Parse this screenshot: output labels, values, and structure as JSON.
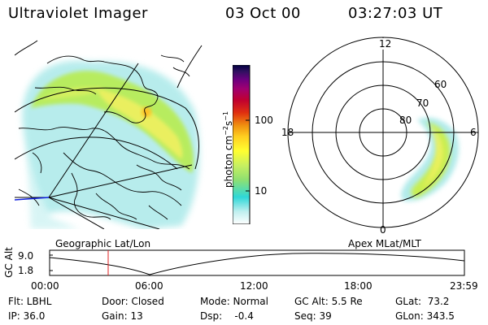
{
  "header": {
    "title": "Ultraviolet Imager",
    "date": "03 Oct 00",
    "time": "03:27:03 UT"
  },
  "left_panel": {
    "caption": "Geographic Lat/Lon"
  },
  "right_panel": {
    "caption": "Apex MLat/MLT",
    "mlt_labels": [
      "12",
      "18",
      "6",
      "0"
    ],
    "lat_labels": [
      "60",
      "70",
      "80"
    ]
  },
  "colorbar": {
    "label": "photon cm",
    "tick_labels": [
      "100",
      "10"
    ],
    "colors": [
      "#ffffff",
      "#bfefef",
      "#2fd8d8",
      "#8fe070",
      "#c8f060",
      "#ffff30",
      "#ffcf20",
      "#f09010",
      "#e03010",
      "#c00030",
      "#a00070",
      "#6a0080",
      "#301060",
      "#000040"
    ]
  },
  "timeline": {
    "y_axis_label": "GC Alt",
    "y_ticks": [
      "9.0",
      "1.8"
    ],
    "x_ticks": [
      "00:00",
      "06:00",
      "12:00",
      "18:00",
      "23:59"
    ],
    "marker_time": "03:27:03"
  },
  "footer": {
    "flt": "Flt: LBHL",
    "ip": "IP: 36.0",
    "door": "Door: Closed",
    "gain": "Gain: 13",
    "mode": "Mode: Normal",
    "dsp": "Dsp:    -0.4",
    "gc_alt": "GC Alt: 5.5 Re",
    "seq": "Seq: 39",
    "glat": "GLat:  73.2",
    "glon": "GLon: 343.5"
  }
}
